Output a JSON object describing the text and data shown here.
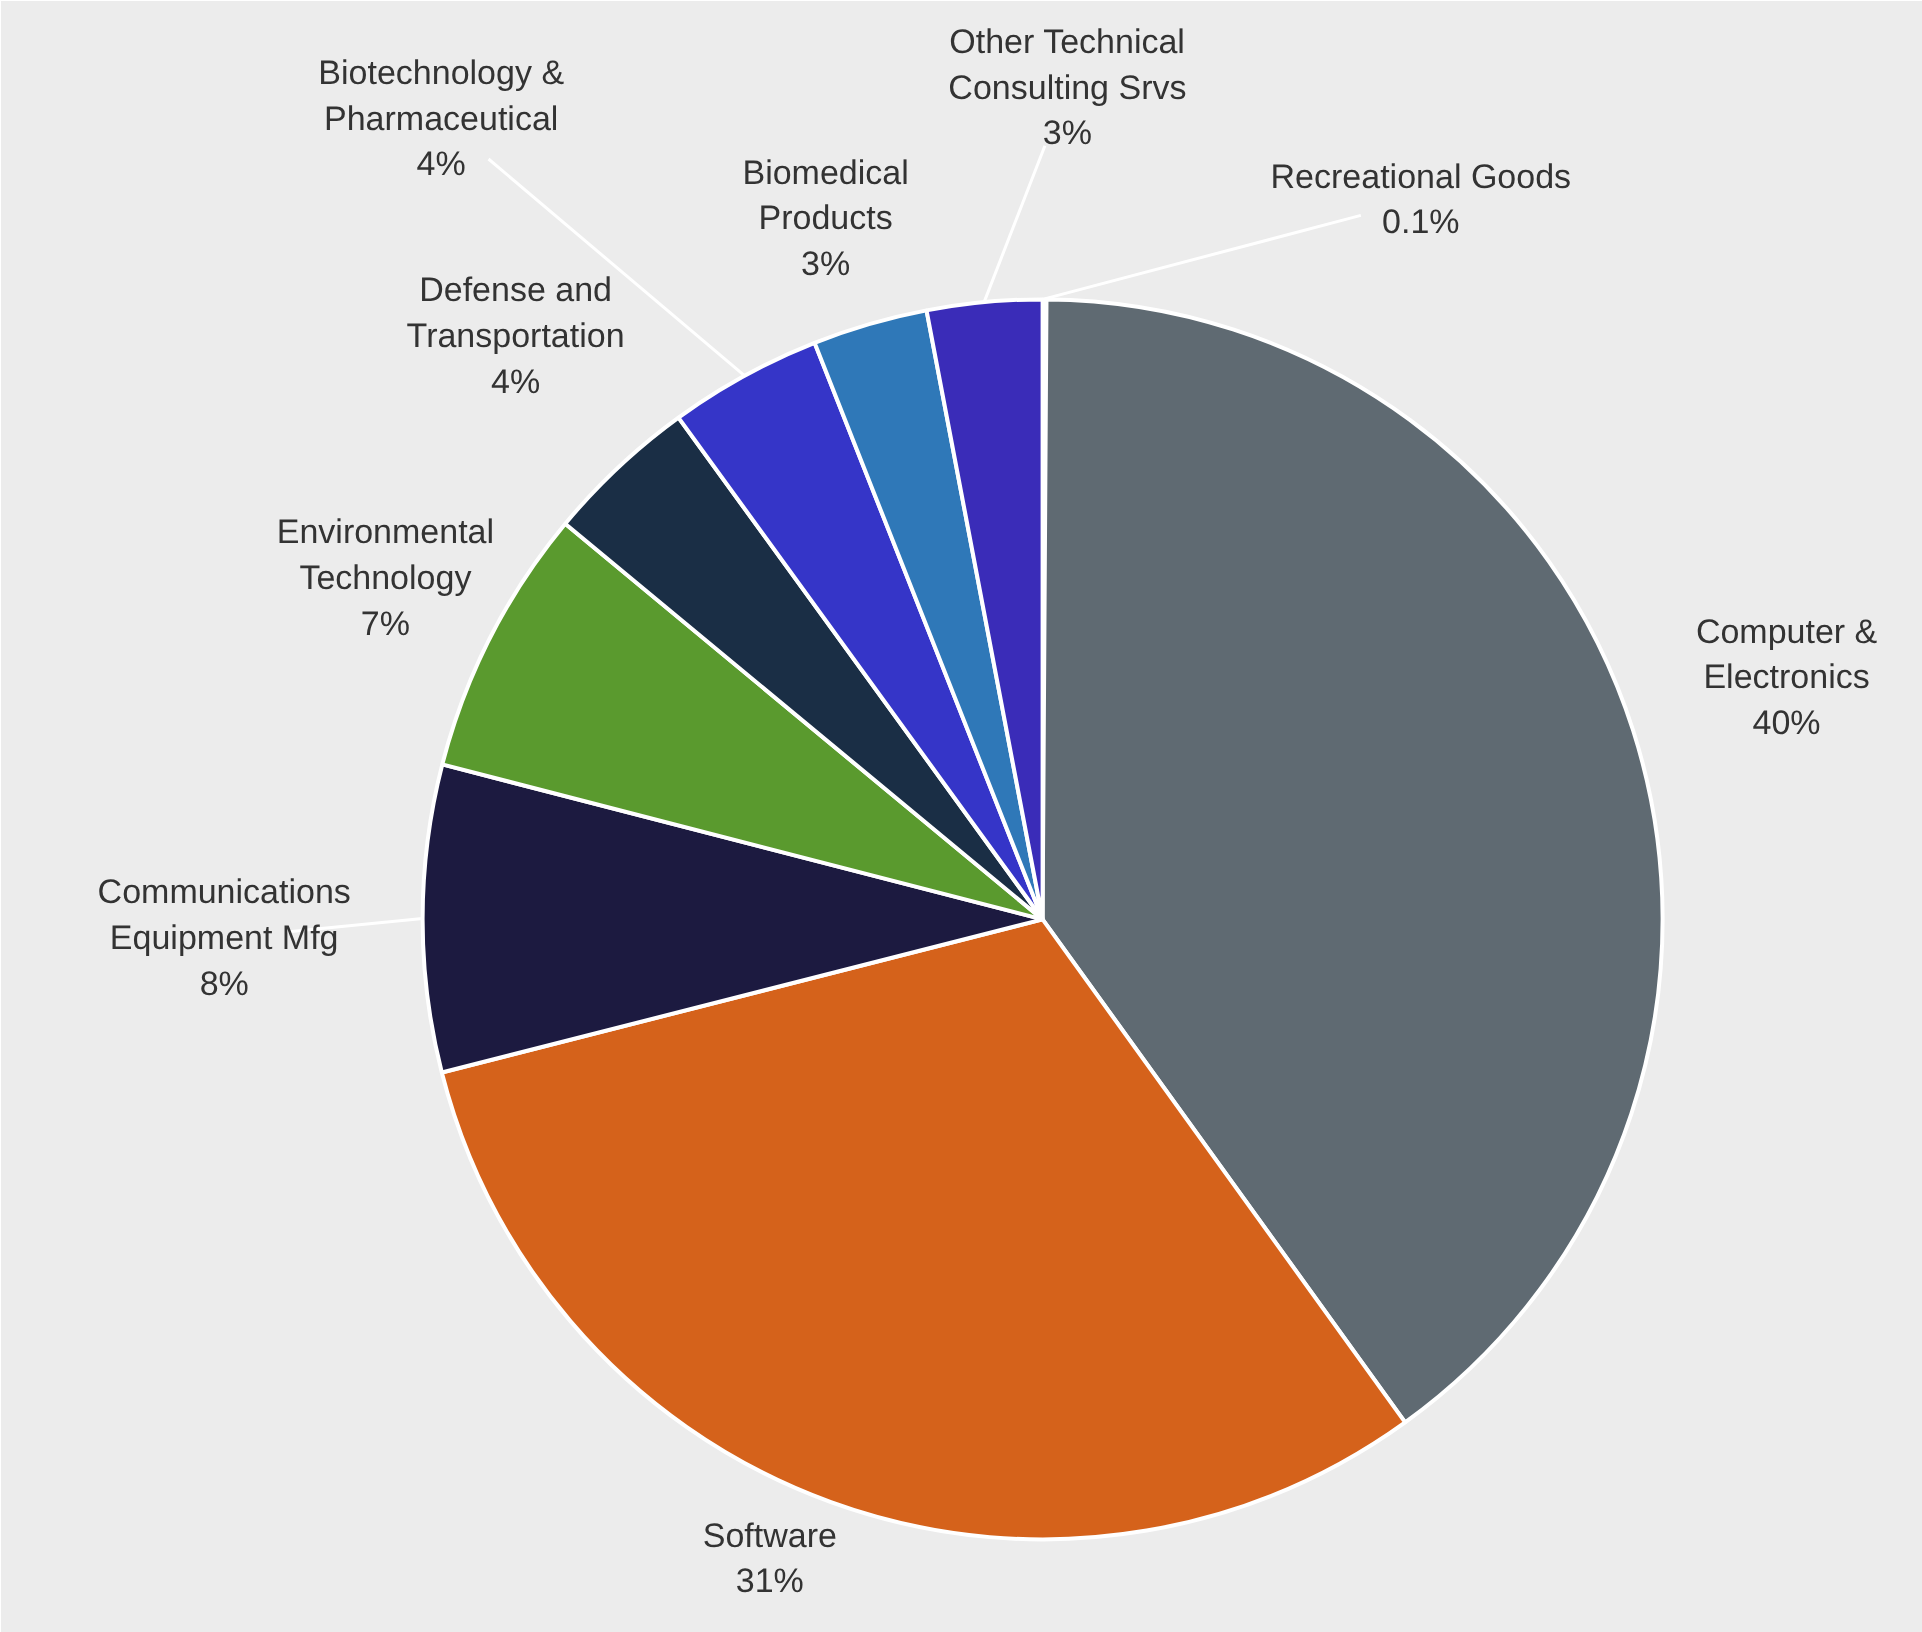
{
  "chart_data": {
    "type": "pie",
    "categories": [
      "Recreational Goods",
      "Computer &\nElectronics",
      "Software",
      "Communications\nEquipment Mfg",
      "Environmental\nTechnology",
      "Defense and\nTransportation",
      "Biotechnology &\nPharmaceutical",
      "Biomedical\nProducts",
      "Other Technical\nConsulting Srvs"
    ],
    "values": [
      0.1,
      40,
      31,
      8,
      7,
      4,
      4,
      3,
      3
    ],
    "value_labels": [
      "0.1%",
      "40%",
      "31%",
      "8%",
      "7%",
      "4%",
      "4%",
      "3%",
      "3%"
    ],
    "colors": [
      "#d8d8d8",
      "#5f6a72",
      "#d5621b",
      "#1c1a40",
      "#5a9a2e",
      "#1a2e45",
      "#3535c8",
      "#2f78b8",
      "#3a2cb8"
    ]
  }
}
